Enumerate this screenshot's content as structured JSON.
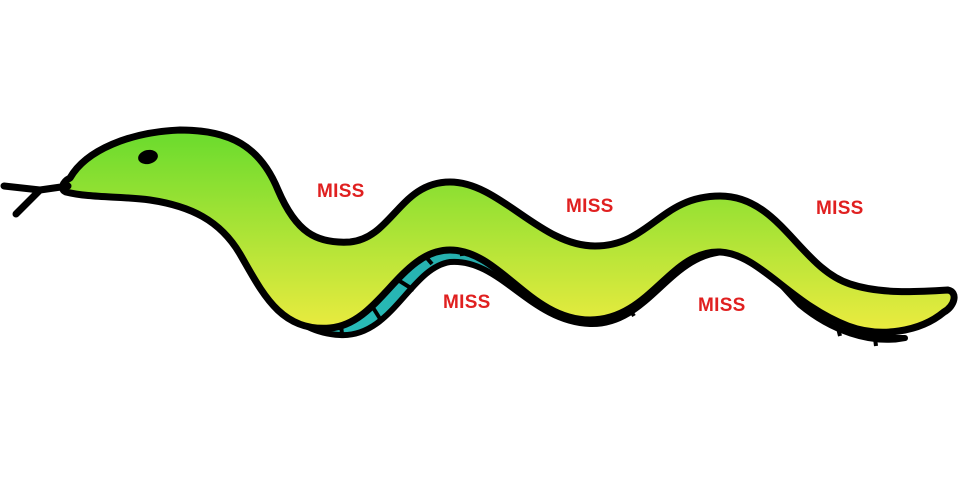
{
  "scene": {
    "background": "#ffffff",
    "sprite": "snake-icon"
  },
  "palette": {
    "outline": "#000000",
    "body_top": "#6fdc2e",
    "body_bottom": "#f1ec40",
    "belly_light": "#2ad0c6",
    "belly_dark": "#1f6f80",
    "miss_color": "#e02020"
  },
  "hit_markers": [
    {
      "text": "MISS"
    },
    {
      "text": "MISS"
    },
    {
      "text": "MISS"
    },
    {
      "text": "MISS"
    },
    {
      "text": "MISS"
    }
  ]
}
